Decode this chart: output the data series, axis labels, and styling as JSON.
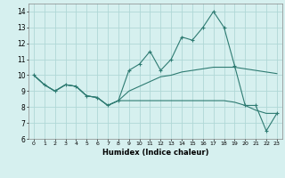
{
  "x": [
    0,
    1,
    2,
    3,
    4,
    5,
    6,
    7,
    8,
    9,
    10,
    11,
    12,
    13,
    14,
    15,
    16,
    17,
    18,
    19,
    20,
    21,
    22,
    23
  ],
  "line1": [
    10.0,
    9.4,
    9.0,
    9.4,
    9.3,
    8.7,
    8.6,
    8.1,
    8.4,
    10.3,
    10.7,
    11.5,
    10.3,
    11.0,
    12.4,
    12.2,
    13.0,
    14.0,
    13.0,
    10.6,
    8.1,
    8.1,
    6.5,
    7.6
  ],
  "line2": [
    10.0,
    9.4,
    9.0,
    9.4,
    9.3,
    8.7,
    8.6,
    8.1,
    8.4,
    8.4,
    8.4,
    8.4,
    8.4,
    8.4,
    8.4,
    8.4,
    8.4,
    8.4,
    8.4,
    8.3,
    8.1,
    7.8,
    7.6,
    7.6
  ],
  "line3": [
    10.0,
    9.4,
    9.0,
    9.4,
    9.3,
    8.7,
    8.6,
    8.1,
    8.4,
    9.0,
    9.3,
    9.6,
    9.9,
    10.0,
    10.2,
    10.3,
    10.4,
    10.5,
    10.5,
    10.5,
    10.4,
    10.3,
    10.2,
    10.1
  ],
  "bg_color": "#d6f0ef",
  "grid_color": "#b0d8d6",
  "line_color": "#2e7b72",
  "xlabel": "Humidex (Indice chaleur)",
  "xlim": [
    -0.5,
    23.5
  ],
  "ylim": [
    6,
    14.5
  ],
  "yticks": [
    6,
    7,
    8,
    9,
    10,
    11,
    12,
    13,
    14
  ],
  "xticks": [
    0,
    1,
    2,
    3,
    4,
    5,
    6,
    7,
    8,
    9,
    10,
    11,
    12,
    13,
    14,
    15,
    16,
    17,
    18,
    19,
    20,
    21,
    22,
    23
  ]
}
